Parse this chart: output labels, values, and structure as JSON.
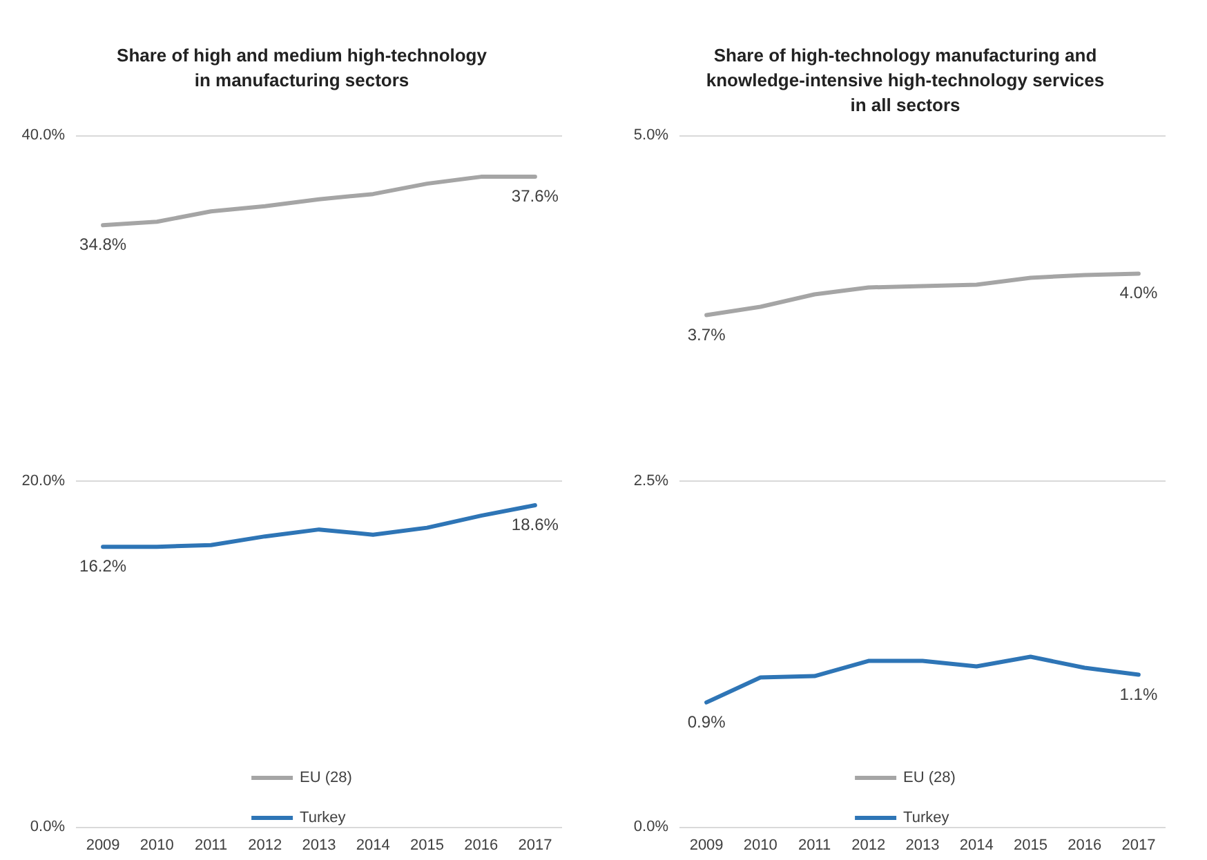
{
  "chart_data": [
    {
      "type": "line",
      "title": "Share of high and medium high-technology\nin manufacturing sectors",
      "categories": [
        "2009",
        "2010",
        "2011",
        "2012",
        "2013",
        "2014",
        "2015",
        "2016",
        "2017"
      ],
      "series": [
        {
          "name": "EU (28)",
          "color": "#a5a5a5",
          "values": [
            34.8,
            35.0,
            35.6,
            35.9,
            36.3,
            36.6,
            37.2,
            37.6,
            37.6
          ],
          "value_labels": [
            "34.8%",
            null,
            null,
            null,
            null,
            null,
            null,
            null,
            "37.6%"
          ]
        },
        {
          "name": "Turkey",
          "color": "#2e75b6",
          "values": [
            16.2,
            16.2,
            16.3,
            16.8,
            17.2,
            16.9,
            17.3,
            18.0,
            18.6
          ],
          "value_labels": [
            "16.2%",
            null,
            null,
            null,
            null,
            null,
            null,
            null,
            "18.6%"
          ]
        }
      ],
      "ylim": [
        0,
        40
      ],
      "yticks": [
        {
          "value": 0,
          "label": "0.0%"
        },
        {
          "value": 20,
          "label": "20.0%"
        },
        {
          "value": 40,
          "label": "40.0%"
        }
      ],
      "grid": "y",
      "legend": "bottom",
      "marker": "none",
      "line_style": "solid"
    },
    {
      "type": "line",
      "title": "Share of high-technology manufacturing and\nknowledge-intensive high-technology services\nin all sectors",
      "categories": [
        "2009",
        "2010",
        "2011",
        "2012",
        "2013",
        "2014",
        "2015",
        "2016",
        "2017"
      ],
      "series": [
        {
          "name": "EU (28)",
          "color": "#a5a5a5",
          "values": [
            3.7,
            3.76,
            3.85,
            3.9,
            3.91,
            3.92,
            3.97,
            3.99,
            4.0
          ],
          "value_labels": [
            "3.7%",
            null,
            null,
            null,
            null,
            null,
            null,
            null,
            "4.0%"
          ]
        },
        {
          "name": "Turkey",
          "color": "#2e75b6",
          "values": [
            0.9,
            1.08,
            1.09,
            1.2,
            1.2,
            1.16,
            1.23,
            1.15,
            1.1
          ],
          "value_labels": [
            "0.9%",
            null,
            null,
            null,
            null,
            null,
            null,
            null,
            "1.1%"
          ]
        }
      ],
      "ylim": [
        0,
        5
      ],
      "yticks": [
        {
          "value": 0,
          "label": "0.0%"
        },
        {
          "value": 2.5,
          "label": "2.5%"
        },
        {
          "value": 5,
          "label": "5.0%"
        }
      ],
      "grid": "y",
      "legend": "bottom",
      "marker": "none",
      "line_style": "solid"
    }
  ]
}
